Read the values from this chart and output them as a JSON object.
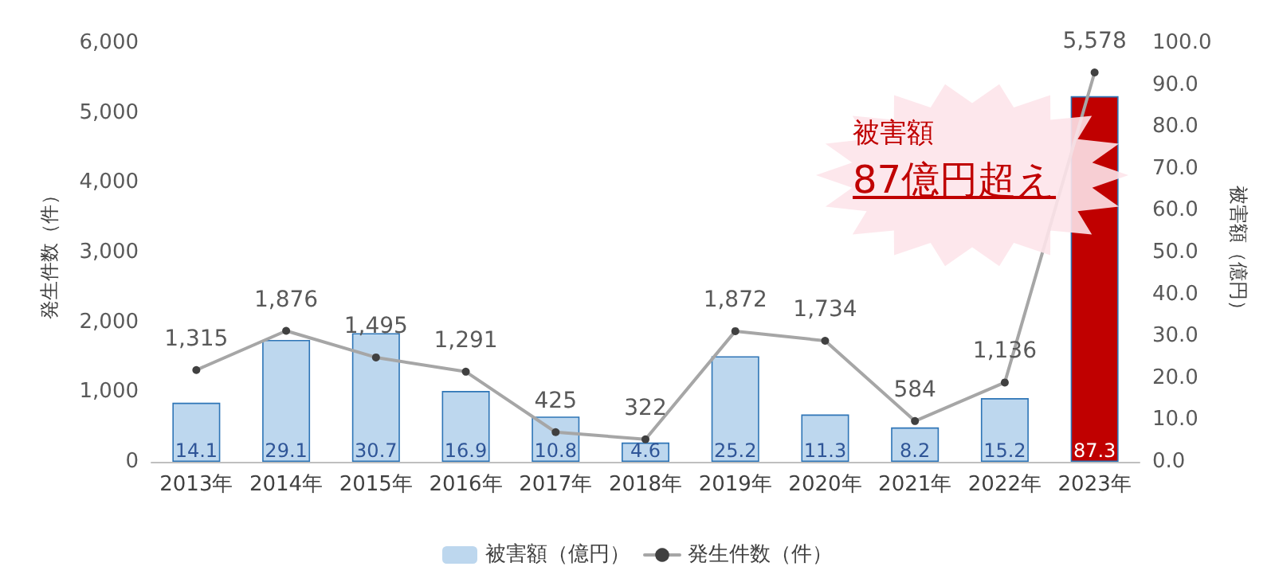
{
  "chart_data": {
    "type": "bar",
    "categories": [
      "2013年",
      "2014年",
      "2015年",
      "2016年",
      "2017年",
      "2018年",
      "2019年",
      "2020年",
      "2021年",
      "2022年",
      "2023年"
    ],
    "ylabel": "発生件数（件）",
    "y2label": "被害額（億円）",
    "ylim": [
      0,
      6000
    ],
    "yticks": [
      {
        "value": 0,
        "label": "0"
      },
      {
        "value": 1000,
        "label": "1,000"
      },
      {
        "value": 2000,
        "label": "2,000"
      },
      {
        "value": 3000,
        "label": "3,000"
      },
      {
        "value": 4000,
        "label": "4,000"
      },
      {
        "value": 5000,
        "label": "5,000"
      },
      {
        "value": 6000,
        "label": "6,000"
      }
    ],
    "y2lim": [
      0,
      100
    ],
    "y2ticks": [
      {
        "value": 0,
        "label": "0.0"
      },
      {
        "value": 10,
        "label": "10.0"
      },
      {
        "value": 20,
        "label": "20.0"
      },
      {
        "value": 30,
        "label": "30.0"
      },
      {
        "value": 40,
        "label": "40.0"
      },
      {
        "value": 50,
        "label": "50.0"
      },
      {
        "value": 60,
        "label": "60.0"
      },
      {
        "value": 70,
        "label": "70.0"
      },
      {
        "value": 80,
        "label": "80.0"
      },
      {
        "value": 90,
        "label": "90.0"
      },
      {
        "value": 100,
        "label": "100.0"
      }
    ],
    "series": [
      {
        "name": "被害額（億円）",
        "axis": "y2",
        "color": "#bdd7ee",
        "colors": [
          "#bdd7ee",
          "#bdd7ee",
          "#bdd7ee",
          "#bdd7ee",
          "#bdd7ee",
          "#bdd7ee",
          "#bdd7ee",
          "#bdd7ee",
          "#bdd7ee",
          "#bdd7ee",
          "#c00000"
        ],
        "values": [
          14.1,
          29.1,
          30.7,
          16.9,
          10.8,
          4.6,
          25.2,
          11.3,
          8.2,
          15.2,
          87.3
        ],
        "value_labels": [
          "14.1",
          "29.1",
          "30.7",
          "16.9",
          "10.8",
          "4.6",
          "25.2",
          "11.3",
          "8.2",
          "15.2",
          "87.3"
        ]
      },
      {
        "name": "発生件数（件）",
        "type": "line",
        "color": "#a6a6a6",
        "values": [
          1315,
          1876,
          1495,
          1291,
          425,
          322,
          1872,
          1734,
          584,
          1136,
          5578
        ],
        "value_labels": [
          "1,315",
          "1,876",
          "1,495",
          "1,291",
          "425",
          "322",
          "1,872",
          "1,734",
          "584",
          "1,136",
          "5,578"
        ]
      }
    ],
    "annotations": [
      "被害額",
      "87億円超え"
    ],
    "grid": false,
    "legend": "bottom",
    "marker": "circle",
    "line_style": "solid"
  }
}
